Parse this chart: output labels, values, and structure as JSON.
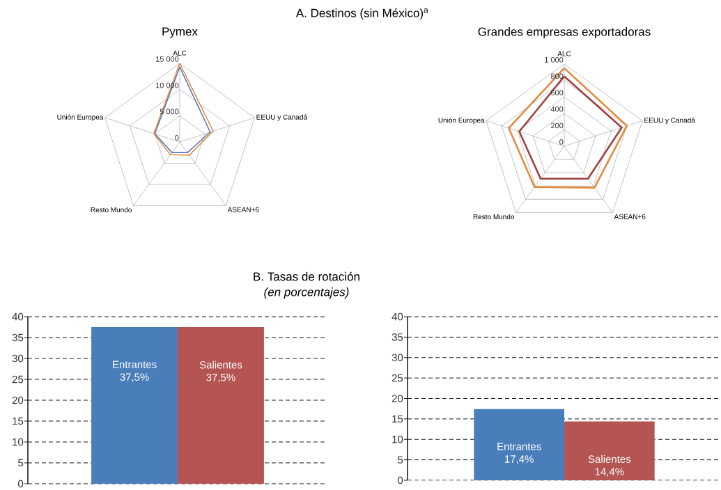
{
  "chart_data": [
    {
      "type": "radar",
      "title": "Pymex",
      "annotations": [
        "A. Destinos (sin México)$^{a}$"
      ],
      "categories": [
        "ALC",
        "EEUU y Canadá",
        "ASEAN+6",
        "Resto Mundo",
        "Unión Europea"
      ],
      "ylim": [
        0,
        15000
      ],
      "yticks": [
        0,
        {
          "value": 5000,
          "label": "5 000"
        },
        {
          "value": 10000,
          "label": "10 000"
        },
        {
          "value": 15000,
          "label": "15 000"
        }
      ],
      "grid": true,
      "series": [
        {
          "color": "#4a6fb5",
          "values": [
            14300,
            6100,
            2500,
            2500,
            5000
          ]
        },
        {
          "color": "#e38a3d",
          "values": [
            15000,
            6700,
            3100,
            3000,
            5200
          ]
        }
      ]
    },
    {
      "type": "radar",
      "title": "Grandes empresas exportadoras",
      "categories": [
        "ALC",
        "EEUU y Canadá",
        "ASEAN+6",
        "Resto Mundo",
        "Unión Europea"
      ],
      "ylim": [
        0,
        1000
      ],
      "yticks": [
        0,
        200,
        400,
        600,
        800,
        {
          "value": 1000,
          "label": "1 000"
        }
      ],
      "grid": true,
      "series": [
        {
          "color": "#e38a3d",
          "values": [
            950,
            800,
            625,
            615,
            710
          ]
        },
        {
          "color": "#a0403f",
          "values": [
            850,
            735,
            490,
            490,
            575
          ]
        }
      ]
    },
    {
      "type": "bar",
      "title": "B. Tasas de rotación",
      "subtitle": "(en porcentajes)",
      "categories": [
        "Entrantes",
        "Salientes"
      ],
      "values": [
        37.5,
        37.5
      ],
      "value_labels": [
        "37,5%",
        "37,5%"
      ],
      "colors": [
        "#4a7ebb",
        "#b55553"
      ],
      "ylim": [
        0,
        40
      ],
      "yticks": [
        0,
        5,
        10,
        15,
        20,
        25,
        30,
        35,
        40
      ],
      "grid": "y"
    },
    {
      "type": "bar",
      "categories": [
        "Entrantes",
        "Salientes"
      ],
      "values": [
        17.4,
        14.4
      ],
      "value_labels": [
        "17,4%",
        "14,4%"
      ],
      "colors": [
        "#4a7ebb",
        "#b55553"
      ],
      "ylim": [
        0,
        40
      ],
      "yticks": [
        0,
        5,
        10,
        15,
        20,
        25,
        30,
        35,
        40
      ],
      "grid": "y"
    }
  ]
}
